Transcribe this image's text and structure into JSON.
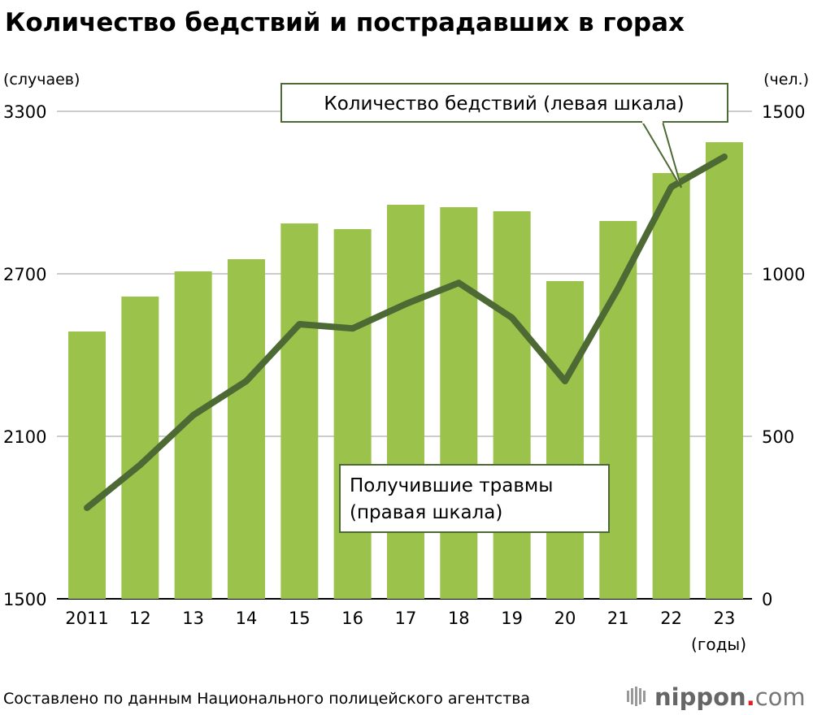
{
  "chart_data": {
    "type": "bar+line",
    "title": "Количество бедствий и пострадавших в горах",
    "left_axis_label": "(случаев)",
    "right_axis_label": "(чел.)",
    "xlabel": "(годы)",
    "categories": [
      "2011",
      "12",
      "13",
      "14",
      "15",
      "16",
      "17",
      "18",
      "19",
      "20",
      "21",
      "22",
      "23"
    ],
    "left_ylim": [
      1500,
      3300
    ],
    "left_ticks": [
      1500,
      2100,
      2700,
      3300
    ],
    "right_ylim": [
      0,
      1500
    ],
    "right_ticks": [
      0,
      500,
      1000,
      1500
    ],
    "grid": true,
    "series": [
      {
        "name": "Количество бедствий (левая шкала)",
        "type": "bar",
        "axis": "left",
        "values": [
          2487,
          2616,
          2709,
          2754,
          2886,
          2865,
          2955,
          2946,
          2931,
          2673,
          2895,
          3072,
          3186
        ]
      },
      {
        "name": "Получившие травмы (правая шкала)",
        "type": "line",
        "axis": "right",
        "values": [
          280,
          412,
          565,
          670,
          845,
          832,
          907,
          972,
          865,
          670,
          955,
          1267,
          1360
        ]
      }
    ],
    "colors": {
      "bar": "#9bc34b",
      "line": "#4d6a35",
      "grid": "#999999"
    },
    "callouts": {
      "bars": "Количество бедствий (левая шкала)",
      "line_1": "Получившие травмы",
      "line_2": "(правая шкала)"
    },
    "source": "Составлено по данным Национального полицейского агентства"
  },
  "logo": "nippon.com"
}
